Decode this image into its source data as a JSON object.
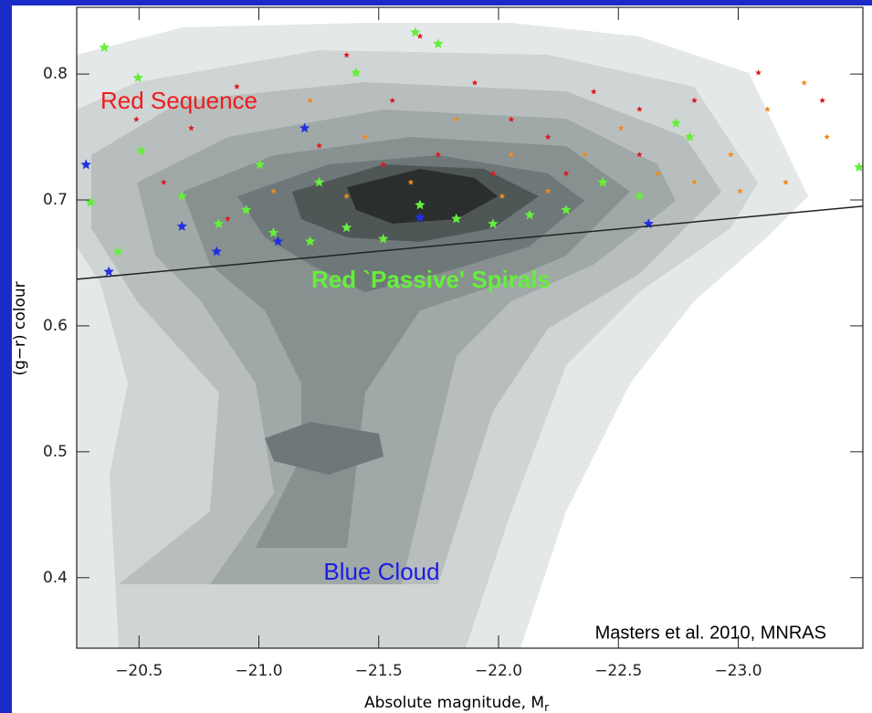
{
  "chart_data": {
    "type": "scatter",
    "xlabel": {
      "text": "Absolute magnitude, M",
      "subscript": "r"
    },
    "ylabel": "(g−r) colour",
    "xlim": [
      -20.24,
      -23.52
    ],
    "ylim": [
      0.344,
      0.853
    ],
    "xticks": [
      {
        "value": -20.5,
        "label": "−20.5"
      },
      {
        "value": -21.0,
        "label": "−21.0"
      },
      {
        "value": -21.5,
        "label": "−21.5"
      },
      {
        "value": -22.0,
        "label": "−22.0"
      },
      {
        "value": -22.5,
        "label": "−22.5"
      },
      {
        "value": -23.0,
        "label": "−23.0"
      }
    ],
    "yticks": [
      0.4,
      0.5,
      0.6,
      0.7,
      0.8
    ],
    "annotations": [
      {
        "text": "Red Sequence",
        "color": "#ee1c1c"
      },
      {
        "text": "Red `Passive' Spirals",
        "color": "#66ee3c"
      },
      {
        "text": "Blue Cloud",
        "color": "#1c1ce6"
      },
      {
        "text": "Masters et al. 2010, MNRAS",
        "color": "#000000"
      }
    ],
    "reference_line": {
      "x": [
        -20.24,
        -23.52
      ],
      "y": [
        0.637,
        0.695
      ],
      "color": "#222222"
    },
    "series": [
      {
        "color": "#e01818",
        "x": [
          -20.489,
          -20.718,
          -20.908,
          -21.366,
          -21.557,
          -21.672,
          -21.901,
          -22.053,
          -22.206,
          -22.397,
          -22.588,
          -22.817,
          -23.084,
          -23.351,
          -21.252,
          -21.519,
          -21.748,
          -21.977,
          -22.282,
          -22.588,
          -20.87,
          -20.603
        ],
        "y": [
          0.764,
          0.757,
          0.79,
          0.815,
          0.779,
          0.83,
          0.793,
          0.764,
          0.75,
          0.786,
          0.772,
          0.779,
          0.801,
          0.779,
          0.743,
          0.728,
          0.736,
          0.721,
          0.721,
          0.736,
          0.685,
          0.714
        ]
      },
      {
        "color": "#f08a1c",
        "x": [
          -21.214,
          -21.443,
          -21.634,
          -21.824,
          -22.053,
          -22.206,
          -22.359,
          -22.511,
          -22.664,
          -22.817,
          -22.969,
          -23.122,
          -23.275,
          -23.37,
          -23.198,
          -23.008,
          -22.015,
          -21.366,
          -21.061
        ],
        "y": [
          0.779,
          0.75,
          0.714,
          0.764,
          0.736,
          0.707,
          0.736,
          0.757,
          0.721,
          0.714,
          0.736,
          0.772,
          0.793,
          0.75,
          0.714,
          0.707,
          0.703,
          0.703,
          0.707
        ]
      },
      {
        "color": "#66ee3c",
        "x": [
          -20.355,
          -20.496,
          -20.508,
          -20.412,
          -20.298,
          -20.679,
          -20.832,
          -20.947,
          -21.061,
          -21.214,
          -21.366,
          -21.519,
          -21.653,
          -21.748,
          -21.405,
          -21.824,
          -21.977,
          -22.13,
          -22.282,
          -22.435,
          -22.588,
          -22.74,
          -22.798,
          -23.504,
          -21.004,
          -21.252,
          -21.672
        ],
        "y": [
          0.821,
          0.797,
          0.739,
          0.659,
          0.698,
          0.703,
          0.681,
          0.692,
          0.674,
          0.667,
          0.678,
          0.669,
          0.833,
          0.824,
          0.801,
          0.685,
          0.681,
          0.688,
          0.692,
          0.714,
          0.703,
          0.761,
          0.75,
          0.726,
          0.728,
          0.714,
          0.696
        ]
      },
      {
        "color": "#2030e0",
        "x": [
          -20.279,
          -20.374,
          -20.824,
          -21.191,
          -21.08,
          -21.672,
          -22.626,
          -20.679
        ],
        "y": [
          0.728,
          0.643,
          0.659,
          0.757,
          0.667,
          0.686,
          0.681,
          0.679
        ]
      }
    ]
  }
}
